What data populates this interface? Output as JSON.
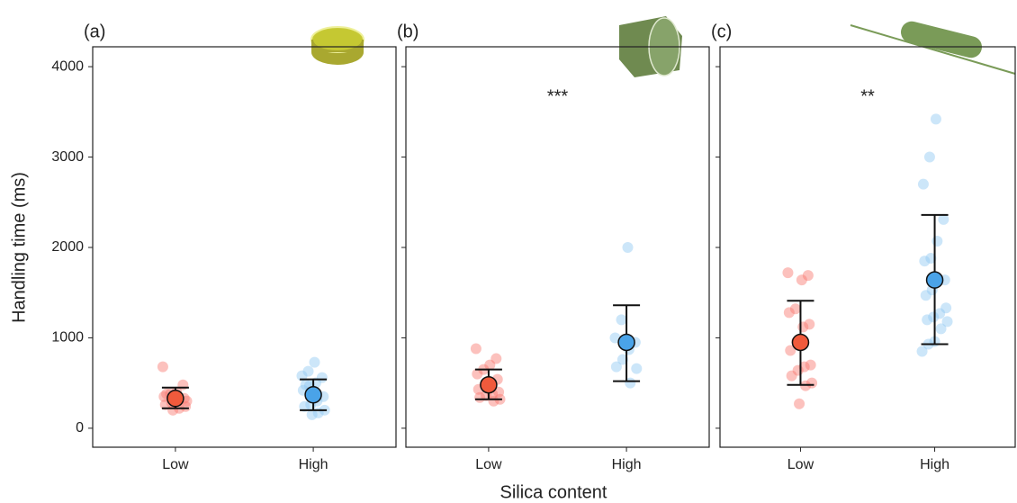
{
  "y_label": "Handling time (ms)",
  "x_label": "Silica content",
  "chart_data": [
    {
      "type": "scatter",
      "label": "(a)",
      "categories": [
        "Low",
        "High"
      ],
      "ylim": [
        -210,
        4220
      ],
      "yticks": [
        0,
        1000,
        2000,
        3000,
        4000
      ],
      "groups": [
        {
          "color": "#f8766d",
          "mean_color": "#f05a3c",
          "points": [
            680,
            480,
            400,
            380,
            350,
            330,
            300,
            280,
            260,
            240,
            220,
            200,
            380,
            300
          ],
          "mean": 330,
          "lower": 220,
          "upper": 450
        },
        {
          "color": "#8ec8f2",
          "mean_color": "#4aa3e8",
          "points": [
            730,
            630,
            580,
            560,
            500,
            470,
            420,
            350,
            300,
            260,
            240,
            200,
            170,
            150,
            480
          ],
          "mean": 370,
          "lower": 200,
          "upper": 540
        }
      ]
    },
    {
      "type": "scatter",
      "label": "(b)",
      "annotation": "***",
      "categories": [
        "Low",
        "High"
      ],
      "ylim": [
        -210,
        4220
      ],
      "yticks": [
        0,
        1000,
        2000,
        3000,
        4000
      ],
      "groups": [
        {
          "color": "#f8766d",
          "mean_color": "#f05a3c",
          "points": [
            880,
            770,
            700,
            650,
            600,
            540,
            490,
            480,
            430,
            400,
            380,
            360,
            340,
            320,
            300
          ],
          "mean": 480,
          "lower": 320,
          "upper": 650
        },
        {
          "color": "#8ec8f2",
          "mean_color": "#4aa3e8",
          "points": [
            2000,
            1200,
            1000,
            950,
            870,
            760,
            680,
            660,
            500
          ],
          "mean": 950,
          "lower": 520,
          "upper": 1360
        }
      ]
    },
    {
      "type": "scatter",
      "label": "(c)",
      "annotation": "**",
      "categories": [
        "Low",
        "High"
      ],
      "ylim": [
        -210,
        4220
      ],
      "yticks": [
        0,
        1000,
        2000,
        3000,
        4000
      ],
      "groups": [
        {
          "color": "#f8766d",
          "mean_color": "#f05a3c",
          "points": [
            1720,
            1690,
            1640,
            1320,
            1280,
            1150,
            1120,
            960,
            860,
            700,
            680,
            640,
            580,
            500,
            470,
            270
          ],
          "mean": 950,
          "lower": 480,
          "upper": 1410
        },
        {
          "color": "#8ec8f2",
          "mean_color": "#4aa3e8",
          "points": [
            3420,
            3000,
            2700,
            2310,
            2070,
            1880,
            1850,
            1640,
            1640,
            1530,
            1470,
            1330,
            1270,
            1230,
            1200,
            1180,
            1100,
            960,
            930,
            850
          ],
          "mean": 1640,
          "lower": 930,
          "upper": 2360
        }
      ]
    }
  ]
}
